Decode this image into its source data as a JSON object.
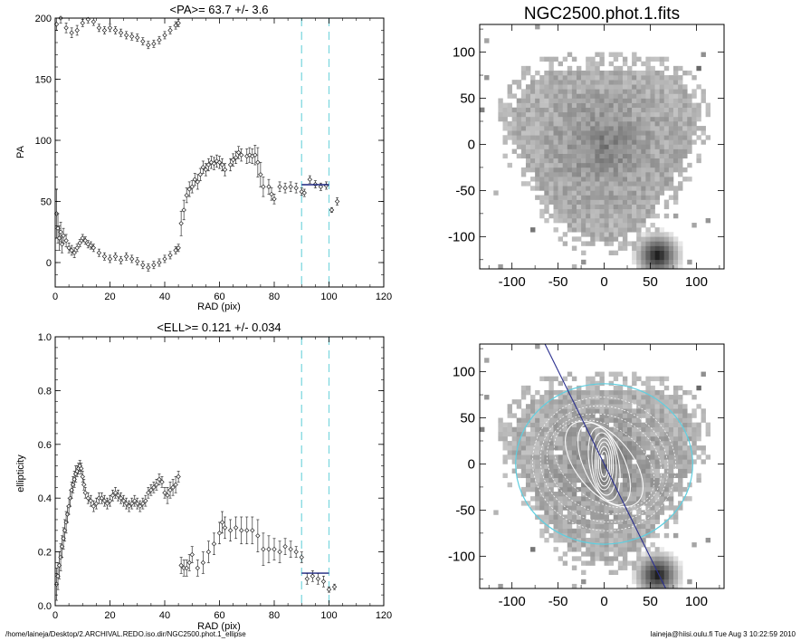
{
  "chart_data": [
    {
      "type": "scatter",
      "title": "<PA>=  63.7 +/-   3.6",
      "xlabel": "RAD (pix)",
      "ylabel": "PA",
      "xlim": [
        0,
        120
      ],
      "ylim": [
        -20,
        200
      ],
      "xticks": [
        "0",
        "20",
        "40",
        "60",
        "80",
        "100",
        "120"
      ],
      "yticks": [
        "0",
        "50",
        "100",
        "150",
        "200"
      ],
      "grid": false,
      "vlines": [
        90,
        100
      ],
      "mean_segment": {
        "x": [
          90,
          100
        ],
        "y": 63.7
      },
      "points": [
        {
          "x": 0.5,
          "y": 40,
          "e": 20
        },
        {
          "x": 1,
          "y": 28,
          "e": 12
        },
        {
          "x": 1.5,
          "y": 20,
          "e": 10
        },
        {
          "x": 2,
          "y": 25,
          "e": 8
        },
        {
          "x": 2.5,
          "y": 15,
          "e": 7
        },
        {
          "x": 3,
          "y": 22,
          "e": 6
        },
        {
          "x": 4,
          "y": 18,
          "e": 5
        },
        {
          "x": 5,
          "y": 12,
          "e": 4
        },
        {
          "x": 6,
          "y": 10,
          "e": 4
        },
        {
          "x": 7,
          "y": 8,
          "e": 4
        },
        {
          "x": 8,
          "y": 12,
          "e": 3
        },
        {
          "x": 9,
          "y": 16,
          "e": 3
        },
        {
          "x": 10,
          "y": 20,
          "e": 3
        },
        {
          "x": 11,
          "y": 18,
          "e": 3
        },
        {
          "x": 12,
          "y": 15,
          "e": 3
        },
        {
          "x": 13,
          "y": 14,
          "e": 3
        },
        {
          "x": 14,
          "y": 12,
          "e": 3
        },
        {
          "x": 16,
          "y": 8,
          "e": 3
        },
        {
          "x": 18,
          "y": 5,
          "e": 3
        },
        {
          "x": 20,
          "y": 3,
          "e": 3
        },
        {
          "x": 22,
          "y": 5,
          "e": 3
        },
        {
          "x": 24,
          "y": 2,
          "e": 3
        },
        {
          "x": 26,
          "y": 5,
          "e": 3
        },
        {
          "x": 28,
          "y": 3,
          "e": 3
        },
        {
          "x": 30,
          "y": 1,
          "e": 3
        },
        {
          "x": 32,
          "y": -2,
          "e": 3
        },
        {
          "x": 34,
          "y": -4,
          "e": 3
        },
        {
          "x": 36,
          "y": -2,
          "e": 3
        },
        {
          "x": 38,
          "y": 0,
          "e": 3
        },
        {
          "x": 40,
          "y": 3,
          "e": 3
        },
        {
          "x": 42,
          "y": 6,
          "e": 3
        },
        {
          "x": 44,
          "y": 10,
          "e": 3
        },
        {
          "x": 45,
          "y": 12,
          "e": 3
        },
        {
          "x": 0.5,
          "y": 195,
          "e": 5
        },
        {
          "x": 2,
          "y": 200,
          "e": 4
        },
        {
          "x": 4,
          "y": 192,
          "e": 4
        },
        {
          "x": 6,
          "y": 188,
          "e": 4
        },
        {
          "x": 8,
          "y": 190,
          "e": 4
        },
        {
          "x": 10,
          "y": 196,
          "e": 3
        },
        {
          "x": 12,
          "y": 199,
          "e": 3
        },
        {
          "x": 14,
          "y": 197,
          "e": 3
        },
        {
          "x": 16,
          "y": 192,
          "e": 3
        },
        {
          "x": 18,
          "y": 190,
          "e": 3
        },
        {
          "x": 20,
          "y": 192,
          "e": 3
        },
        {
          "x": 22,
          "y": 190,
          "e": 3
        },
        {
          "x": 24,
          "y": 188,
          "e": 3
        },
        {
          "x": 26,
          "y": 186,
          "e": 3
        },
        {
          "x": 28,
          "y": 185,
          "e": 3
        },
        {
          "x": 30,
          "y": 184,
          "e": 3
        },
        {
          "x": 32,
          "y": 181,
          "e": 3
        },
        {
          "x": 34,
          "y": 178,
          "e": 3
        },
        {
          "x": 36,
          "y": 179,
          "e": 3
        },
        {
          "x": 38,
          "y": 182,
          "e": 3
        },
        {
          "x": 40,
          "y": 186,
          "e": 3
        },
        {
          "x": 42,
          "y": 190,
          "e": 3
        },
        {
          "x": 44,
          "y": 194,
          "e": 3
        },
        {
          "x": 45,
          "y": 196,
          "e": 3
        },
        {
          "x": 46,
          "y": 32,
          "e": 10
        },
        {
          "x": 47,
          "y": 43,
          "e": 8
        },
        {
          "x": 48,
          "y": 55,
          "e": 6
        },
        {
          "x": 49,
          "y": 60,
          "e": 6
        },
        {
          "x": 50,
          "y": 62,
          "e": 5
        },
        {
          "x": 51,
          "y": 68,
          "e": 5
        },
        {
          "x": 52,
          "y": 66,
          "e": 6
        },
        {
          "x": 53,
          "y": 72,
          "e": 5
        },
        {
          "x": 54,
          "y": 78,
          "e": 5
        },
        {
          "x": 55,
          "y": 76,
          "e": 5
        },
        {
          "x": 56,
          "y": 80,
          "e": 5
        },
        {
          "x": 57,
          "y": 82,
          "e": 5
        },
        {
          "x": 58,
          "y": 81,
          "e": 5
        },
        {
          "x": 59,
          "y": 83,
          "e": 5
        },
        {
          "x": 60,
          "y": 82,
          "e": 5
        },
        {
          "x": 61,
          "y": 80,
          "e": 5
        },
        {
          "x": 62,
          "y": 76,
          "e": 5
        },
        {
          "x": 64,
          "y": 80,
          "e": 5
        },
        {
          "x": 65,
          "y": 84,
          "e": 5
        },
        {
          "x": 66,
          "y": 86,
          "e": 5
        },
        {
          "x": 67,
          "y": 90,
          "e": 5
        },
        {
          "x": 68,
          "y": 88,
          "e": 5
        },
        {
          "x": 70,
          "y": 87,
          "e": 6
        },
        {
          "x": 71,
          "y": 88,
          "e": 6
        },
        {
          "x": 72,
          "y": 87,
          "e": 6
        },
        {
          "x": 73,
          "y": 88,
          "e": 8
        },
        {
          "x": 74,
          "y": 82,
          "e": 12
        },
        {
          "x": 75,
          "y": 72,
          "e": 10
        },
        {
          "x": 76,
          "y": 62,
          "e": 8
        },
        {
          "x": 78,
          "y": 62,
          "e": 6
        },
        {
          "x": 79,
          "y": 56,
          "e": 5
        },
        {
          "x": 80,
          "y": 52,
          "e": 4
        },
        {
          "x": 82,
          "y": 62,
          "e": 4
        },
        {
          "x": 84,
          "y": 61,
          "e": 4
        },
        {
          "x": 86,
          "y": 62,
          "e": 4
        },
        {
          "x": 88,
          "y": 61,
          "e": 4
        },
        {
          "x": 90,
          "y": 58,
          "e": 3
        },
        {
          "x": 91,
          "y": 57,
          "e": 3
        },
        {
          "x": 93,
          "y": 68,
          "e": 3
        },
        {
          "x": 95,
          "y": 64,
          "e": 3
        },
        {
          "x": 97,
          "y": 62,
          "e": 3
        },
        {
          "x": 99,
          "y": 63,
          "e": 3
        },
        {
          "x": 101,
          "y": 43,
          "e": 2
        },
        {
          "x": 103,
          "y": 50,
          "e": 3
        }
      ]
    },
    {
      "type": "scatter",
      "title": "<ELL>= 0.121 +/-  0.034",
      "xlabel": "RAD (pix)",
      "ylabel": "ellipticity",
      "xlim": [
        0,
        120
      ],
      "ylim": [
        0,
        1
      ],
      "xticks": [
        "0",
        "20",
        "40",
        "60",
        "80",
        "100",
        "120"
      ],
      "yticks": [
        "0.0",
        "0.2",
        "0.4",
        "0.6",
        "0.8",
        "1.0"
      ],
      "grid": false,
      "vlines": [
        90,
        100
      ],
      "mean_segment": {
        "x": [
          90,
          100
        ],
        "y": 0.121
      },
      "points": [
        {
          "x": 0.5,
          "y": 0.08,
          "e": 0.06
        },
        {
          "x": 1,
          "y": 0.11,
          "e": 0.05
        },
        {
          "x": 1.5,
          "y": 0.15,
          "e": 0.05
        },
        {
          "x": 2,
          "y": 0.18,
          "e": 0.05
        },
        {
          "x": 2.5,
          "y": 0.22,
          "e": 0.04
        },
        {
          "x": 3,
          "y": 0.25,
          "e": 0.04
        },
        {
          "x": 3.5,
          "y": 0.28,
          "e": 0.04
        },
        {
          "x": 4,
          "y": 0.31,
          "e": 0.04
        },
        {
          "x": 4.5,
          "y": 0.34,
          "e": 0.03
        },
        {
          "x": 5,
          "y": 0.37,
          "e": 0.03
        },
        {
          "x": 5.5,
          "y": 0.4,
          "e": 0.03
        },
        {
          "x": 6,
          "y": 0.43,
          "e": 0.03
        },
        {
          "x": 6.5,
          "y": 0.45,
          "e": 0.03
        },
        {
          "x": 7,
          "y": 0.47,
          "e": 0.03
        },
        {
          "x": 7.5,
          "y": 0.49,
          "e": 0.03
        },
        {
          "x": 8,
          "y": 0.5,
          "e": 0.02
        },
        {
          "x": 8.5,
          "y": 0.51,
          "e": 0.02
        },
        {
          "x": 9,
          "y": 0.52,
          "e": 0.02
        },
        {
          "x": 9.5,
          "y": 0.51,
          "e": 0.02
        },
        {
          "x": 10,
          "y": 0.48,
          "e": 0.02
        },
        {
          "x": 10.5,
          "y": 0.45,
          "e": 0.02
        },
        {
          "x": 11,
          "y": 0.42,
          "e": 0.02
        },
        {
          "x": 12,
          "y": 0.4,
          "e": 0.02
        },
        {
          "x": 13,
          "y": 0.39,
          "e": 0.02
        },
        {
          "x": 14,
          "y": 0.37,
          "e": 0.02
        },
        {
          "x": 15,
          "y": 0.38,
          "e": 0.02
        },
        {
          "x": 16,
          "y": 0.4,
          "e": 0.02
        },
        {
          "x": 17,
          "y": 0.4,
          "e": 0.02
        },
        {
          "x": 18,
          "y": 0.39,
          "e": 0.02
        },
        {
          "x": 19,
          "y": 0.38,
          "e": 0.02
        },
        {
          "x": 20,
          "y": 0.39,
          "e": 0.02
        },
        {
          "x": 21,
          "y": 0.41,
          "e": 0.02
        },
        {
          "x": 22,
          "y": 0.42,
          "e": 0.02
        },
        {
          "x": 23,
          "y": 0.41,
          "e": 0.02
        },
        {
          "x": 24,
          "y": 0.4,
          "e": 0.02
        },
        {
          "x": 25,
          "y": 0.39,
          "e": 0.02
        },
        {
          "x": 26,
          "y": 0.38,
          "e": 0.02
        },
        {
          "x": 27,
          "y": 0.37,
          "e": 0.02
        },
        {
          "x": 28,
          "y": 0.38,
          "e": 0.02
        },
        {
          "x": 29,
          "y": 0.39,
          "e": 0.02
        },
        {
          "x": 30,
          "y": 0.38,
          "e": 0.02
        },
        {
          "x": 31,
          "y": 0.37,
          "e": 0.02
        },
        {
          "x": 32,
          "y": 0.38,
          "e": 0.02
        },
        {
          "x": 33,
          "y": 0.39,
          "e": 0.02
        },
        {
          "x": 34,
          "y": 0.42,
          "e": 0.02
        },
        {
          "x": 35,
          "y": 0.43,
          "e": 0.02
        },
        {
          "x": 36,
          "y": 0.44,
          "e": 0.02
        },
        {
          "x": 37,
          "y": 0.45,
          "e": 0.02
        },
        {
          "x": 38,
          "y": 0.47,
          "e": 0.02
        },
        {
          "x": 39,
          "y": 0.46,
          "e": 0.02
        },
        {
          "x": 40,
          "y": 0.42,
          "e": 0.02
        },
        {
          "x": 41,
          "y": 0.41,
          "e": 0.03
        },
        {
          "x": 42,
          "y": 0.43,
          "e": 0.03
        },
        {
          "x": 43,
          "y": 0.44,
          "e": 0.03
        },
        {
          "x": 44,
          "y": 0.45,
          "e": 0.03
        },
        {
          "x": 45,
          "y": 0.48,
          "e": 0.02
        },
        {
          "x": 46,
          "y": 0.15,
          "e": 0.03
        },
        {
          "x": 47,
          "y": 0.14,
          "e": 0.03
        },
        {
          "x": 48,
          "y": 0.14,
          "e": 0.03
        },
        {
          "x": 49,
          "y": 0.16,
          "e": 0.03
        },
        {
          "x": 50,
          "y": 0.19,
          "e": 0.03
        },
        {
          "x": 52,
          "y": 0.14,
          "e": 0.03
        },
        {
          "x": 54,
          "y": 0.16,
          "e": 0.04
        },
        {
          "x": 56,
          "y": 0.2,
          "e": 0.04
        },
        {
          "x": 58,
          "y": 0.23,
          "e": 0.04
        },
        {
          "x": 60,
          "y": 0.27,
          "e": 0.04
        },
        {
          "x": 61,
          "y": 0.31,
          "e": 0.04
        },
        {
          "x": 62,
          "y": 0.29,
          "e": 0.04
        },
        {
          "x": 64,
          "y": 0.28,
          "e": 0.04
        },
        {
          "x": 66,
          "y": 0.29,
          "e": 0.04
        },
        {
          "x": 68,
          "y": 0.28,
          "e": 0.05
        },
        {
          "x": 70,
          "y": 0.28,
          "e": 0.05
        },
        {
          "x": 72,
          "y": 0.28,
          "e": 0.05
        },
        {
          "x": 74,
          "y": 0.26,
          "e": 0.06
        },
        {
          "x": 76,
          "y": 0.21,
          "e": 0.06
        },
        {
          "x": 78,
          "y": 0.21,
          "e": 0.05
        },
        {
          "x": 80,
          "y": 0.21,
          "e": 0.04
        },
        {
          "x": 82,
          "y": 0.2,
          "e": 0.04
        },
        {
          "x": 84,
          "y": 0.22,
          "e": 0.03
        },
        {
          "x": 86,
          "y": 0.21,
          "e": 0.03
        },
        {
          "x": 88,
          "y": 0.2,
          "e": 0.02
        },
        {
          "x": 90,
          "y": 0.18,
          "e": 0.02
        },
        {
          "x": 92,
          "y": 0.1,
          "e": 0.02
        },
        {
          "x": 94,
          "y": 0.11,
          "e": 0.02
        },
        {
          "x": 96,
          "y": 0.1,
          "e": 0.02
        },
        {
          "x": 98,
          "y": 0.09,
          "e": 0.02
        },
        {
          "x": 100,
          "y": 0.06,
          "e": 0.01
        },
        {
          "x": 102,
          "y": 0.07,
          "e": 0.01
        }
      ]
    },
    {
      "type": "heatmap",
      "title": "NGC2500.phot.1.fits",
      "xlim": [
        -135,
        130
      ],
      "ylim": [
        -135,
        130
      ],
      "xticks": [
        "-100",
        "-50",
        "0",
        "50",
        "100"
      ],
      "yticks": [
        "-100",
        "-50",
        "0",
        "50",
        "100"
      ],
      "colormap": "grayscale"
    },
    {
      "type": "heatmap",
      "title": "",
      "xlim": [
        -135,
        130
      ],
      "ylim": [
        -135,
        130
      ],
      "xticks": [
        "-100",
        "-50",
        "0",
        "50",
        "100"
      ],
      "yticks": [
        "-100",
        "-50",
        "0",
        "50",
        "100"
      ],
      "colormap": "grayscale",
      "overlay": "isophote ellipses",
      "pa_line_deg": 63.7,
      "outer_ellipse_radius": 100
    }
  ],
  "footer": {
    "path": "/home/laineja/Desktop/2.ARCHIVAL.REDO.iso.dir/NGC2500.phot.1_ellipse",
    "stamp": "laineja@hiisi.oulu.fi  Tue Aug  3 10:22:59 2010"
  },
  "colors": {
    "vline": "#7fd8e0",
    "mean_segment": "#1a237e",
    "pa_line": "#2a2f8f",
    "outer_ellipse": "#5ecfe0"
  }
}
